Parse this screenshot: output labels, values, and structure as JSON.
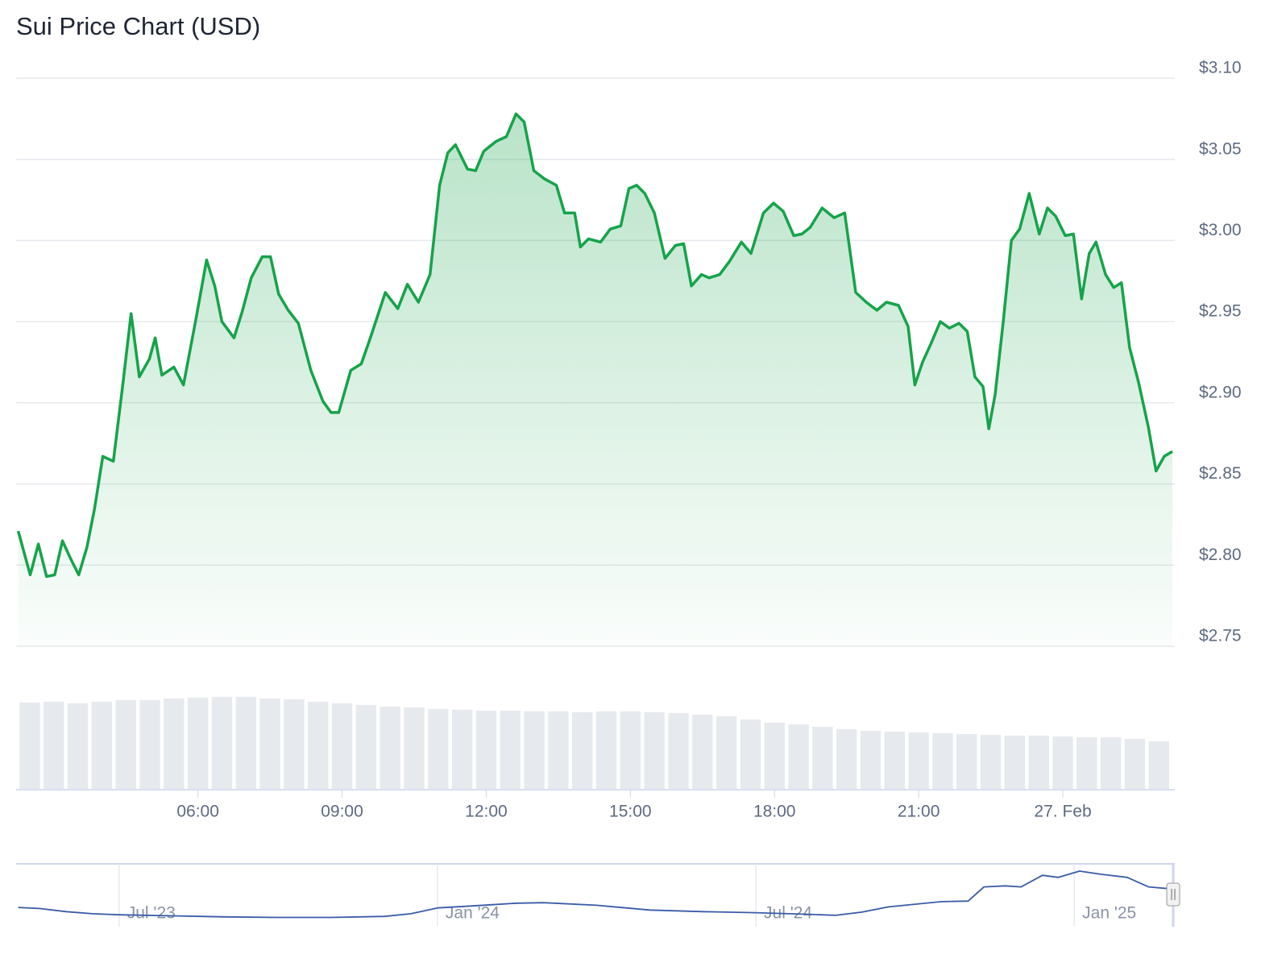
{
  "chart_data": [
    {
      "type": "line",
      "title": "Sui Price Chart (USD)",
      "color": "#16a34a",
      "grid": true,
      "x": [
        2.26,
        2.51,
        2.68,
        2.85,
        3.02,
        3.18,
        3.35,
        3.52,
        3.69,
        3.85,
        4.02,
        4.24,
        4.44,
        4.61,
        4.78,
        4.99,
        5.11,
        5.25,
        5.5,
        5.7,
        5.95,
        6.18,
        6.35,
        6.5,
        6.75,
        6.92,
        7.11,
        7.34,
        7.51,
        7.68,
        7.88,
        8.09,
        8.35,
        8.6,
        8.77,
        8.93,
        9.18,
        9.4,
        9.6,
        9.9,
        10.16,
        10.36,
        10.59,
        10.83,
        11.03,
        11.2,
        11.36,
        11.61,
        11.78,
        11.95,
        12.2,
        12.42,
        12.62,
        12.79,
        12.99,
        13.21,
        13.46,
        13.63,
        13.84,
        13.96,
        14.13,
        14.38,
        14.58,
        14.8,
        14.97,
        15.13,
        15.3,
        15.5,
        15.72,
        15.94,
        16.11,
        16.27,
        16.48,
        16.64,
        16.86,
        17.06,
        17.31,
        17.51,
        17.77,
        17.98,
        18.18,
        18.4,
        18.57,
        18.74,
        18.99,
        19.24,
        19.46,
        19.69,
        19.91,
        20.13,
        20.33,
        20.58,
        20.78,
        20.92,
        21.08,
        21.25,
        21.45,
        21.64,
        21.84,
        22.01,
        22.17,
        22.34,
        22.46,
        22.59,
        22.76,
        22.93,
        23.1,
        23.3,
        23.51,
        23.68,
        23.85,
        24.05,
        24.22,
        24.39,
        24.55,
        24.69,
        24.89,
        25.06,
        25.22,
        25.39,
        25.58,
        25.78,
        25.94,
        26.11,
        26.28
      ],
      "values": [
        2.821,
        2.794,
        2.813,
        2.793,
        2.794,
        2.815,
        2.804,
        2.794,
        2.811,
        2.835,
        2.867,
        2.864,
        2.912,
        2.955,
        2.916,
        2.927,
        2.94,
        2.917,
        2.922,
        2.911,
        2.95,
        2.988,
        2.972,
        2.95,
        2.94,
        2.956,
        2.977,
        2.99,
        2.99,
        2.967,
        2.957,
        2.949,
        2.92,
        2.901,
        2.894,
        2.894,
        2.92,
        2.924,
        2.941,
        2.968,
        2.958,
        2.973,
        2.962,
        2.979,
        3.034,
        3.054,
        3.059,
        3.044,
        3.043,
        3.055,
        3.061,
        3.064,
        3.078,
        3.073,
        3.043,
        3.038,
        3.034,
        3.017,
        3.017,
        2.996,
        3.001,
        2.999,
        3.007,
        3.009,
        3.032,
        3.034,
        3.029,
        3.017,
        2.989,
        2.997,
        2.998,
        2.972,
        2.979,
        2.977,
        2.979,
        2.987,
        2.999,
        2.992,
        3.017,
        3.023,
        3.018,
        3.003,
        3.004,
        3.008,
        3.02,
        3.014,
        3.017,
        2.968,
        2.962,
        2.957,
        2.962,
        2.96,
        2.947,
        2.911,
        2.925,
        2.936,
        2.95,
        2.946,
        2.949,
        2.944,
        2.916,
        2.91,
        2.884,
        2.905,
        2.95,
        3.0,
        3.007,
        3.029,
        3.004,
        3.02,
        3.015,
        3.003,
        3.004,
        2.964,
        2.992,
        2.999,
        2.979,
        2.971,
        2.974,
        2.934,
        2.912,
        2.885,
        2.858,
        2.867,
        2.87
      ],
      "xlim": [
        2.25,
        26.28
      ],
      "xticks": [
        {
          "value": 6,
          "label": "06:00"
        },
        {
          "value": 9,
          "label": "09:00"
        },
        {
          "value": 12,
          "label": "12:00"
        },
        {
          "value": 15,
          "label": "15:00"
        },
        {
          "value": 18,
          "label": "18:00"
        },
        {
          "value": 21,
          "label": "21:00"
        },
        {
          "value": 24,
          "label": "27. Feb"
        }
      ],
      "ylim": [
        2.75,
        3.1
      ],
      "yticks": [
        {
          "value": 2.75,
          "label": "$2.75"
        },
        {
          "value": 2.8,
          "label": "$2.80"
        },
        {
          "value": 2.85,
          "label": "$2.85"
        },
        {
          "value": 2.9,
          "label": "$2.90"
        },
        {
          "value": 2.95,
          "label": "$2.95"
        },
        {
          "value": 3.0,
          "label": "$3.00"
        },
        {
          "value": 3.05,
          "label": "$3.05"
        },
        {
          "value": 3.1,
          "label": "$3.10"
        }
      ]
    },
    {
      "type": "bar",
      "color": "#e6e9ee",
      "x": [
        2.5,
        3,
        3.5,
        4,
        4.5,
        5,
        5.5,
        6,
        6.5,
        7,
        7.5,
        8,
        8.5,
        9,
        9.5,
        10,
        10.5,
        11,
        11.5,
        12,
        12.5,
        13,
        13.5,
        14,
        14.5,
        15,
        15.5,
        16,
        16.5,
        17,
        17.5,
        18,
        18.5,
        19,
        19.5,
        20,
        20.5,
        21,
        21.5,
        22,
        22.5,
        23,
        23.5,
        24,
        24.5,
        25,
        25.5,
        26
      ],
      "values": [
        107,
        108,
        106,
        108,
        110,
        110,
        112,
        113,
        114,
        114,
        112,
        111,
        108,
        106,
        104,
        102,
        101,
        99,
        98,
        97,
        97,
        96,
        96,
        95,
        96,
        96,
        95,
        94,
        92,
        90,
        86,
        82,
        80,
        77,
        74,
        72,
        71,
        70,
        69,
        68,
        67,
        66,
        66,
        65,
        64,
        64,
        62,
        59
      ]
    },
    {
      "type": "line",
      "color": "#3a5ba8",
      "x": [
        4.1,
        4.5,
        5,
        5.5,
        6,
        7,
        8,
        9,
        10,
        11,
        11.5,
        12,
        12.5,
        13,
        13.5,
        14,
        15,
        16,
        17,
        18,
        19,
        19.5,
        20,
        20.5,
        21,
        21.5,
        22,
        22.3,
        22.7,
        23,
        23.4,
        23.7,
        24.1,
        24.5,
        25,
        25.4,
        25.85
      ],
      "values": [
        1.45,
        1.35,
        1.05,
        0.85,
        0.75,
        0.65,
        0.55,
        0.5,
        0.5,
        0.6,
        0.85,
        1.4,
        1.55,
        1.7,
        1.85,
        1.9,
        1.65,
        1.2,
        1.05,
        0.95,
        0.8,
        0.7,
        1.0,
        1.5,
        1.75,
        2.0,
        2.05,
        3.4,
        3.5,
        3.4,
        4.5,
        4.3,
        4.9,
        4.6,
        4.3,
        3.4,
        3.2
      ],
      "xlim": [
        4.06,
        25.85
      ],
      "xticks": [
        {
          "value": 6,
          "label": "Jul '23"
        },
        {
          "value": 12,
          "label": "Jan '24"
        },
        {
          "value": 18,
          "label": "Jul '24"
        },
        {
          "value": 24,
          "label": "Jan '25"
        }
      ]
    }
  ]
}
